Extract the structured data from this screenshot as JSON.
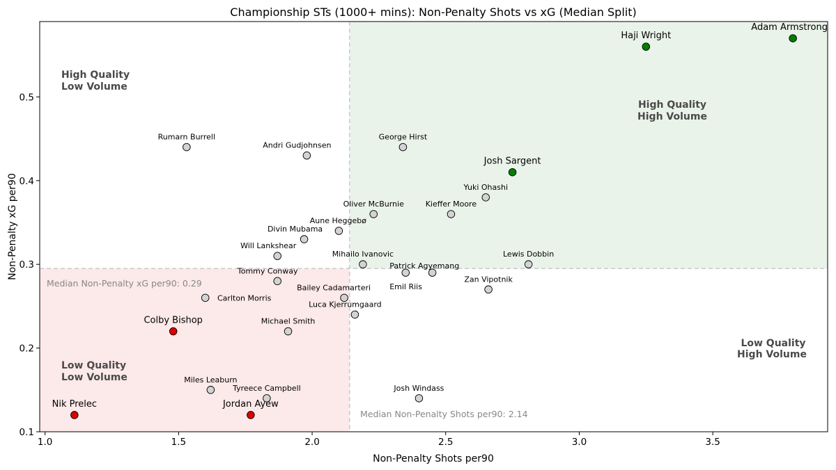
{
  "chart_data": {
    "type": "scatter",
    "title": "Championship STs (1000+ mins): Non-Penalty Shots vs xG (Median Split)",
    "xlabel": "Non-Penalty Shots per90",
    "ylabel": "Non-Penalty xG per90",
    "xlim": [
      0.98,
      3.93
    ],
    "ylim": [
      0.1,
      0.59
    ],
    "xticks": [
      1.0,
      1.5,
      2.0,
      2.5,
      3.0,
      3.5
    ],
    "xtick_labels": [
      "1.0",
      "1.5",
      "2.0",
      "2.5",
      "3.0",
      "3.5"
    ],
    "yticks": [
      0.1,
      0.2,
      0.3,
      0.4,
      0.5
    ],
    "ytick_labels": [
      "0.1",
      "0.2",
      "0.3",
      "0.4",
      "0.5"
    ],
    "median_x": 2.14,
    "median_y": 0.295,
    "median_x_label": "Median Non-Penalty Shots per90: 2.14",
    "median_y_label": "Median Non-Penalty xG per90: 0.29",
    "quadrant_labels": {
      "top_left": [
        "High Quality",
        "Low Volume"
      ],
      "top_right": [
        "High Quality",
        "High Volume"
      ],
      "bottom_left": [
        "Low Quality",
        "Low Volume"
      ],
      "bottom_right": [
        "Low Quality",
        "High Volume"
      ]
    },
    "colors": {
      "high": "#008000",
      "low": "#e00000",
      "neutral": "#d3d3d3",
      "top_right_fill": "#eaf3ea",
      "bottom_left_fill": "#fce9e9",
      "median_line": "#cccccc"
    },
    "points": [
      {
        "name": "Haji Wright",
        "x": 3.25,
        "y": 0.56,
        "group": "high"
      },
      {
        "name": "Adam Armstrong",
        "x": 3.8,
        "y": 0.57,
        "group": "high"
      },
      {
        "name": "Josh Sargent",
        "x": 2.75,
        "y": 0.41,
        "group": "high"
      },
      {
        "name": "Colby Bishop",
        "x": 1.48,
        "y": 0.22,
        "group": "low"
      },
      {
        "name": "Nik Prelec",
        "x": 1.11,
        "y": 0.12,
        "group": "low"
      },
      {
        "name": "Jordan Ayew",
        "x": 1.77,
        "y": 0.12,
        "group": "low"
      },
      {
        "name": "Rumarn Burrell",
        "x": 1.53,
        "y": 0.44,
        "group": "neutral"
      },
      {
        "name": "Andri Gudjohnsen",
        "x": 1.98,
        "y": 0.43,
        "group": "neutral"
      },
      {
        "name": "George Hirst",
        "x": 2.34,
        "y": 0.44,
        "group": "neutral"
      },
      {
        "name": "Yuki Ohashi",
        "x": 2.65,
        "y": 0.38,
        "group": "neutral"
      },
      {
        "name": "Oliver McBurnie",
        "x": 2.23,
        "y": 0.36,
        "group": "neutral"
      },
      {
        "name": "Kieffer Moore",
        "x": 2.52,
        "y": 0.36,
        "group": "neutral"
      },
      {
        "name": "Aune Heggebø",
        "x": 2.1,
        "y": 0.34,
        "group": "neutral"
      },
      {
        "name": "Divin Mubama",
        "x": 1.97,
        "y": 0.33,
        "group": "neutral"
      },
      {
        "name": "Will Lankshear",
        "x": 1.87,
        "y": 0.31,
        "group": "neutral"
      },
      {
        "name": "Mihailo Ivanovic",
        "x": 2.19,
        "y": 0.3,
        "group": "neutral"
      },
      {
        "name": "Patrick Agyemang",
        "x": 2.35,
        "y": 0.29,
        "group": "neutral"
      },
      {
        "name": "Emil Riis",
        "x": 2.45,
        "y": 0.29,
        "group": "neutral"
      },
      {
        "name": "Lewis Dobbin",
        "x": 2.81,
        "y": 0.3,
        "group": "neutral"
      },
      {
        "name": "Tommy Conway",
        "x": 1.87,
        "y": 0.28,
        "group": "neutral"
      },
      {
        "name": "Zan Vipotnik",
        "x": 2.66,
        "y": 0.27,
        "group": "neutral"
      },
      {
        "name": "Bailey Cadamarteri",
        "x": 2.12,
        "y": 0.26,
        "group": "neutral"
      },
      {
        "name": "Carlton Morris",
        "x": 1.6,
        "y": 0.26,
        "group": "neutral"
      },
      {
        "name": "Luca Kjerrumgaard",
        "x": 2.16,
        "y": 0.24,
        "group": "neutral"
      },
      {
        "name": "Michael Smith",
        "x": 1.91,
        "y": 0.22,
        "group": "neutral"
      },
      {
        "name": "Miles Leaburn",
        "x": 1.62,
        "y": 0.15,
        "group": "neutral"
      },
      {
        "name": "Tyreece Campbell",
        "x": 1.83,
        "y": 0.14,
        "group": "neutral"
      },
      {
        "name": "Josh Windass",
        "x": 2.4,
        "y": 0.14,
        "group": "neutral"
      }
    ]
  }
}
